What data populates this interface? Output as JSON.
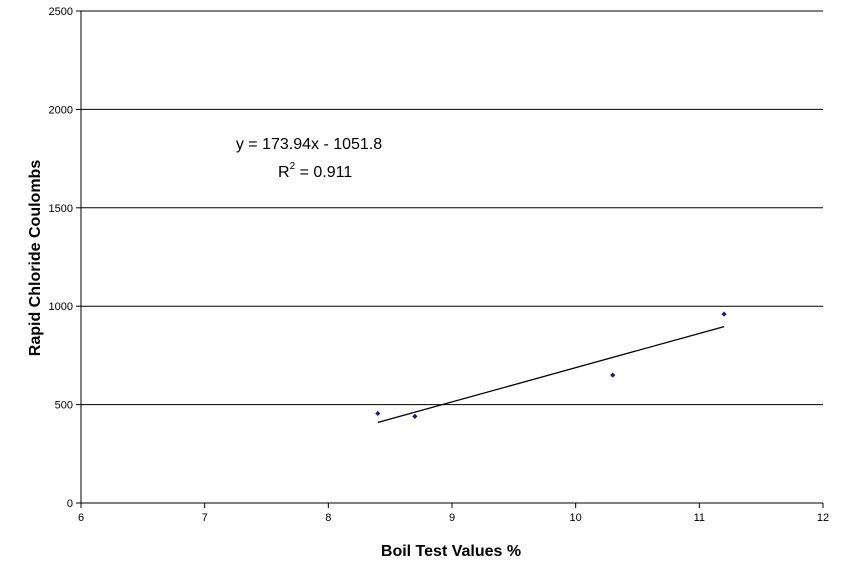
{
  "chart_data": {
    "type": "scatter",
    "title": "",
    "xlabel": "Boil Test Values %",
    "ylabel": "Rapid Chloride Coulombs",
    "xlim": [
      6,
      12
    ],
    "ylim": [
      0,
      2500
    ],
    "x_ticks": [
      6,
      7,
      8,
      9,
      10,
      11,
      12
    ],
    "y_ticks": [
      0,
      500,
      1000,
      1500,
      2000,
      2500
    ],
    "grid": "horizontal",
    "legend": "none",
    "series": [
      {
        "points": [
          {
            "x": 8.4,
            "y": 455
          },
          {
            "x": 8.7,
            "y": 440
          },
          {
            "x": 10.3,
            "y": 650
          },
          {
            "x": 11.2,
            "y": 960
          }
        ],
        "marker_color": "#1a1a7a"
      }
    ],
    "trendline": {
      "type": "linear",
      "slope": 173.94,
      "intercept": -1051.8,
      "x_range": [
        8.4,
        11.2
      ],
      "color": "#000000"
    },
    "annotations": {
      "equation": "y = 173.94x - 1051.8",
      "r2_prefix": "R",
      "r2_sup": "2",
      "r2_value": " = 0.911"
    }
  }
}
